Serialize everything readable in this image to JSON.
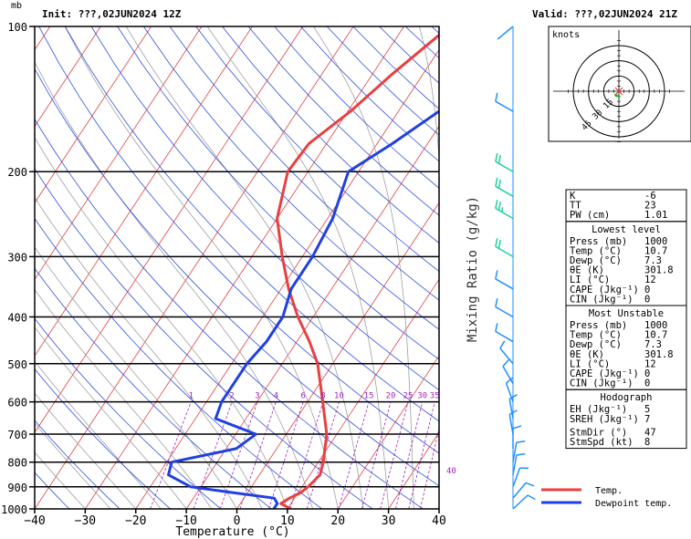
{
  "header": {
    "pressure_unit": "mb",
    "init_label": "Init: ???,02JUN2024 12Z",
    "valid_label": "Valid: ???,02JUN2024 21Z"
  },
  "chart_data": {
    "type": "line",
    "xlabel": "Temperature (°C)",
    "ylabel": "mb",
    "xlim": [
      -40,
      40
    ],
    "ylim": [
      1000,
      100
    ],
    "y_scale": "log",
    "x_ticks": [
      "−40",
      "−30",
      "−20",
      "−10",
      "0",
      "10",
      "20",
      "30",
      "40"
    ],
    "y_ticks": [
      100,
      200,
      300,
      400,
      500,
      600,
      700,
      800,
      900,
      1000
    ],
    "y_tick_labels": [
      "100",
      "200",
      "300",
      "400",
      "500",
      "600",
      "700",
      "800",
      "900",
      "1000"
    ],
    "mixing_ratio_label": "Mixing Ratio (g/kg)",
    "mixing_ratio_values": [
      1,
      2,
      3,
      4,
      6,
      8,
      10,
      15,
      20,
      25,
      30,
      35,
      40
    ],
    "mixing_ratio_labels": [
      "1",
      "2",
      "3",
      "4",
      "6",
      "8",
      "10",
      "15",
      "20",
      "25",
      "30",
      "35",
      "40"
    ],
    "legend": [
      "Temp.",
      "Dewpoint temp."
    ],
    "series": [
      {
        "name": "Temp.",
        "color": "#e84040",
        "points": [
          [
            1000,
            10.7
          ],
          [
            975,
            8.0
          ],
          [
            950,
            9.0
          ],
          [
            925,
            10.5
          ],
          [
            900,
            11.2
          ],
          [
            850,
            12.0
          ],
          [
            800,
            11.0
          ],
          [
            700,
            8.0
          ],
          [
            600,
            3.0
          ],
          [
            500,
            -3.0
          ],
          [
            450,
            -7.5
          ],
          [
            400,
            -13.0
          ],
          [
            350,
            -18.5
          ],
          [
            300,
            -24.0
          ],
          [
            250,
            -30.0
          ],
          [
            200,
            -34.0
          ],
          [
            175,
            -33.5
          ],
          [
            150,
            -29.5
          ],
          [
            125,
            -26.0
          ],
          [
            100,
            -21.0
          ]
        ]
      },
      {
        "name": "Dewpoint temp.",
        "color": "#2040e0",
        "points": [
          [
            1000,
            7.3
          ],
          [
            975,
            7.3
          ],
          [
            950,
            6.0
          ],
          [
            925,
            -3.0
          ],
          [
            900,
            -12.0
          ],
          [
            850,
            -18.0
          ],
          [
            800,
            -19.0
          ],
          [
            750,
            -8.0
          ],
          [
            700,
            -6.0
          ],
          [
            650,
            -16.0
          ],
          [
            600,
            -17.0
          ],
          [
            550,
            -17.0
          ],
          [
            500,
            -17.0
          ],
          [
            450,
            -16.0
          ],
          [
            400,
            -16.0
          ],
          [
            350,
            -18.0
          ],
          [
            300,
            -18.0
          ],
          [
            250,
            -19.0
          ],
          [
            200,
            -22.0
          ],
          [
            175,
            -17.0
          ],
          [
            150,
            -12.0
          ],
          [
            125,
            -6.0
          ],
          [
            100,
            0.0
          ]
        ]
      }
    ],
    "wind_barbs": {
      "unit": "knots",
      "levels": [
        {
          "p": 1000,
          "dir": 47,
          "spd": 8
        },
        {
          "p": 950,
          "dir": 40,
          "spd": 10
        },
        {
          "p": 900,
          "dir": 20,
          "spd": 10
        },
        {
          "p": 850,
          "dir": 10,
          "spd": 10
        },
        {
          "p": 800,
          "dir": 10,
          "spd": 10
        },
        {
          "p": 750,
          "dir": 360,
          "spd": 10
        },
        {
          "p": 700,
          "dir": 350,
          "spd": 10
        },
        {
          "p": 650,
          "dir": 350,
          "spd": 10
        },
        {
          "p": 600,
          "dir": 340,
          "spd": 10
        },
        {
          "p": 550,
          "dir": 330,
          "spd": 10
        },
        {
          "p": 500,
          "dir": 320,
          "spd": 10
        },
        {
          "p": 450,
          "dir": 300,
          "spd": 10
        },
        {
          "p": 400,
          "dir": 300,
          "spd": 10
        },
        {
          "p": 350,
          "dir": 300,
          "spd": 10
        },
        {
          "p": 300,
          "dir": 300,
          "spd": 20
        },
        {
          "p": 250,
          "dir": 300,
          "spd": 25
        },
        {
          "p": 225,
          "dir": 300,
          "spd": 20
        },
        {
          "p": 200,
          "dir": 300,
          "spd": 20
        },
        {
          "p": 150,
          "dir": 300,
          "spd": 10
        },
        {
          "p": 100,
          "dir": 230,
          "spd": 0
        }
      ]
    }
  },
  "hodograph": {
    "unit_label": "knots",
    "ring_labels": [
      "15",
      "30",
      "45"
    ],
    "ring_values": [
      15,
      30,
      45
    ]
  },
  "indices": {
    "rows": [
      {
        "label": "K",
        "value": "-6"
      },
      {
        "label": "TT",
        "value": "23"
      },
      {
        "label": "PW (cm)",
        "value": "1.01"
      }
    ],
    "lowest": {
      "title": "Lowest level",
      "rows": [
        {
          "label": "Press (mb)",
          "value": "1000"
        },
        {
          "label": "Temp (°C)",
          "value": "10.7"
        },
        {
          "label": "Dewp (°C)",
          "value": "7.3"
        },
        {
          "label": "θE (K)",
          "value": "301.8"
        },
        {
          "label": "LI (°C)",
          "value": "12"
        },
        {
          "label": "CAPE (Jkg⁻¹)",
          "value": "0"
        },
        {
          "label": "CIN (Jkg⁻¹)",
          "value": "0"
        }
      ]
    },
    "unstable": {
      "title": "Most Unstable",
      "rows": [
        {
          "label": "Press (mb)",
          "value": "1000"
        },
        {
          "label": "Temp (°C)",
          "value": "10.7"
        },
        {
          "label": "Dewp (°C)",
          "value": "7.3"
        },
        {
          "label": "θE (K)",
          "value": "301.8"
        },
        {
          "label": "LI (°C)",
          "value": "12"
        },
        {
          "label": "CAPE (Jkg⁻¹)",
          "value": "0"
        },
        {
          "label": "CIN (Jkg⁻¹)",
          "value": "0"
        }
      ]
    },
    "hodo": {
      "title": "Hodograph",
      "rows": [
        {
          "label": "EH (Jkg⁻¹)",
          "value": "5"
        },
        {
          "label": "SREH (Jkg⁻¹)",
          "value": "7"
        }
      ]
    },
    "storm": {
      "rows": [
        {
          "label": "StmDir (°)",
          "value": "47"
        },
        {
          "label": "StmSpd (kt)",
          "value": "8"
        }
      ]
    }
  },
  "legend": {
    "temp_label": "Temp.",
    "dew_label": "Dewpoint temp.",
    "temp_color": "#e84040",
    "dew_color": "#2040e0"
  }
}
